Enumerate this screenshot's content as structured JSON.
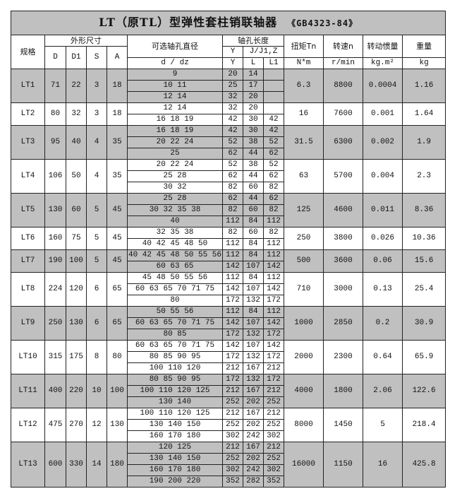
{
  "title": "LT（原TL）型弹性套柱销联轴器",
  "standard": "《GB4323-84》",
  "header": {
    "spec": "规格",
    "outer_dims": "外形尺寸",
    "D": "D",
    "D1": "D1",
    "S": "S",
    "A": "A",
    "bore_dia": "可选轴孔直径",
    "bore_len": "轴孔长度",
    "Y": "Y",
    "JJ1Z": "J/J1,Z",
    "d_dz": "d / dz",
    "Y2": "Y",
    "L": "L",
    "L1": "L1",
    "torque": "扭矩Tn",
    "speed": "转速n",
    "inertia": "转动惯量",
    "weight": "重量",
    "torque_unit": "N*m",
    "speed_unit": "r/min",
    "inertia_unit": "kg.m²",
    "weight_unit": "kg"
  },
  "shade_color": "#c0c0c0",
  "rows": [
    {
      "spec": "LT1",
      "D": "71",
      "D1": "22",
      "S": "3",
      "A": "18",
      "Tn": "6.3",
      "n": "8800",
      "I": "0.0004",
      "W": "1.16",
      "bores": [
        [
          "9",
          "20",
          "14",
          ""
        ],
        [
          "10 11",
          "25",
          "17",
          ""
        ],
        [
          "12 14",
          "32",
          "20",
          ""
        ]
      ]
    },
    {
      "spec": "LT2",
      "D": "80",
      "D1": "32",
      "S": "3",
      "A": "18",
      "Tn": "16",
      "n": "7600",
      "I": "0.001",
      "W": "1.64",
      "bores": [
        [
          "12 14",
          "32",
          "20",
          ""
        ],
        [
          "16 18 19",
          "42",
          "30",
          "42"
        ]
      ]
    },
    {
      "spec": "LT3",
      "D": "95",
      "D1": "40",
      "S": "4",
      "A": "35",
      "Tn": "31.5",
      "n": "6300",
      "I": "0.002",
      "W": "1.9",
      "bores": [
        [
          "16 18 19",
          "42",
          "30",
          "42"
        ],
        [
          "20 22 24",
          "52",
          "38",
          "52"
        ],
        [
          "25",
          "62",
          "44",
          "62"
        ]
      ]
    },
    {
      "spec": "LT4",
      "D": "106",
      "D1": "50",
      "S": "4",
      "A": "35",
      "Tn": "63",
      "n": "5700",
      "I": "0.004",
      "W": "2.3",
      "bores": [
        [
          "20 22 24",
          "52",
          "38",
          "52"
        ],
        [
          "25 28",
          "62",
          "44",
          "62"
        ],
        [
          "30 32",
          "82",
          "60",
          "82"
        ]
      ]
    },
    {
      "spec": "LT5",
      "D": "130",
      "D1": "60",
      "S": "5",
      "A": "45",
      "Tn": "125",
      "n": "4600",
      "I": "0.011",
      "W": "8.36",
      "bores": [
        [
          "25 28",
          "62",
          "44",
          "62"
        ],
        [
          "30 32 35 38",
          "82",
          "60",
          "82"
        ],
        [
          "40",
          "112",
          "84",
          "112"
        ]
      ]
    },
    {
      "spec": "LT6",
      "D": "160",
      "D1": "75",
      "S": "5",
      "A": "45",
      "Tn": "250",
      "n": "3800",
      "I": "0.026",
      "W": "10.36",
      "bores": [
        [
          "32 35 38",
          "82",
          "60",
          "82"
        ],
        [
          "40 42 45 48 50",
          "112",
          "84",
          "112"
        ]
      ]
    },
    {
      "spec": "LT7",
      "D": "190",
      "D1": "100",
      "S": "5",
      "A": "45",
      "Tn": "500",
      "n": "3600",
      "I": "0.06",
      "W": "15.6",
      "bores": [
        [
          "40 42 45 48 50 55 56",
          "112",
          "84",
          "112"
        ],
        [
          "60 63 65",
          "142",
          "107",
          "142"
        ]
      ]
    },
    {
      "spec": "LT8",
      "D": "224",
      "D1": "120",
      "S": "6",
      "A": "65",
      "Tn": "710",
      "n": "3000",
      "I": "0.13",
      "W": "25.4",
      "bores": [
        [
          "45 48 50 55 56",
          "112",
          "84",
          "112"
        ],
        [
          "60 63 65 70 71 75",
          "142",
          "107",
          "142"
        ],
        [
          "80",
          "172",
          "132",
          "172"
        ]
      ]
    },
    {
      "spec": "LT9",
      "D": "250",
      "D1": "130",
      "S": "6",
      "A": "65",
      "Tn": "1000",
      "n": "2850",
      "I": "0.2",
      "W": "30.9",
      "bores": [
        [
          "50 55 56",
          "112",
          "84",
          "112"
        ],
        [
          "60 63 65 70 71 75",
          "142",
          "107",
          "142"
        ],
        [
          "80 85",
          "172",
          "132",
          "172"
        ]
      ]
    },
    {
      "spec": "LT10",
      "D": "315",
      "D1": "175",
      "S": "8",
      "A": "80",
      "Tn": "2000",
      "n": "2300",
      "I": "0.64",
      "W": "65.9",
      "bores": [
        [
          "60 63 65 70 71 75",
          "142",
          "107",
          "142"
        ],
        [
          "80 85 90 95",
          "172",
          "132",
          "172"
        ],
        [
          "100 110 120",
          "212",
          "167",
          "212"
        ]
      ]
    },
    {
      "spec": "LT11",
      "D": "400",
      "D1": "220",
      "S": "10",
      "A": "100",
      "Tn": "4000",
      "n": "1800",
      "I": "2.06",
      "W": "122.6",
      "bores": [
        [
          "80 85 90 95",
          "172",
          "132",
          "172"
        ],
        [
          "100 110 120 125",
          "212",
          "167",
          "212"
        ],
        [
          "130 140",
          "252",
          "202",
          "252"
        ]
      ]
    },
    {
      "spec": "LT12",
      "D": "475",
      "D1": "270",
      "S": "12",
      "A": "130",
      "Tn": "8000",
      "n": "1450",
      "I": "5",
      "W": "218.4",
      "bores": [
        [
          "100 110 120 125",
          "212",
          "167",
          "212"
        ],
        [
          "130 140 150",
          "252",
          "202",
          "252"
        ],
        [
          "160 170 180",
          "302",
          "242",
          "302"
        ]
      ]
    },
    {
      "spec": "LT13",
      "D": "600",
      "D1": "330",
      "S": "14",
      "A": "180",
      "Tn": "16000",
      "n": "1150",
      "I": "16",
      "W": "425.8",
      "bores": [
        [
          "120 125",
          "212",
          "167",
          "212"
        ],
        [
          "130 140 150",
          "252",
          "202",
          "252"
        ],
        [
          "160 170 180",
          "302",
          "242",
          "302"
        ],
        [
          "190 200 220",
          "352",
          "282",
          "352"
        ]
      ]
    }
  ]
}
